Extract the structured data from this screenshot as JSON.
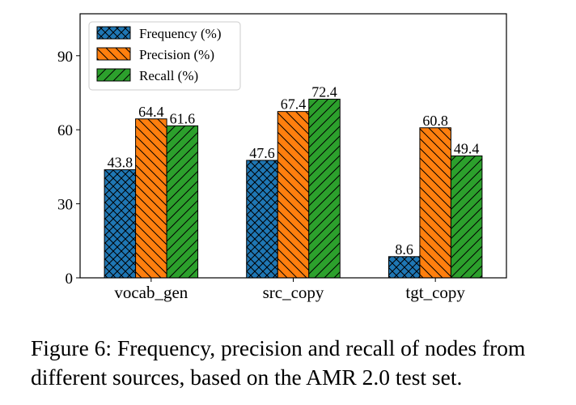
{
  "chart_data": {
    "type": "bar",
    "categories": [
      "vocab_gen",
      "src_copy",
      "tgt_copy"
    ],
    "series": [
      {
        "name": "Frequency (%)",
        "values": [
          43.8,
          47.6,
          8.6
        ],
        "labels": [
          "43.8",
          "47.6",
          "8.6"
        ],
        "color": "#1f77b4",
        "hatch": "crosshatch"
      },
      {
        "name": "Precision (%)",
        "values": [
          64.4,
          67.4,
          60.8
        ],
        "labels": [
          "64.4",
          "67.4",
          "60.8"
        ],
        "color": "#ff7f0e",
        "hatch": "backslash"
      },
      {
        "name": "Recall (%)",
        "values": [
          61.6,
          72.4,
          49.4
        ],
        "labels": [
          "61.6",
          "72.4",
          "49.4"
        ],
        "color": "#2ca02c",
        "hatch": "slash"
      }
    ],
    "yticks": [
      0,
      30,
      60,
      90
    ],
    "ytick_labels": [
      "0",
      "30",
      "60",
      "90"
    ],
    "ylim": [
      0,
      107
    ],
    "xlabel": "",
    "ylabel": "",
    "legend_position": "top-left",
    "grid": false
  },
  "caption": {
    "line1": "Figure 6: Frequency, precision and recall of nodes from",
    "line2": "different sources, based on the AMR 2.0 test set."
  }
}
